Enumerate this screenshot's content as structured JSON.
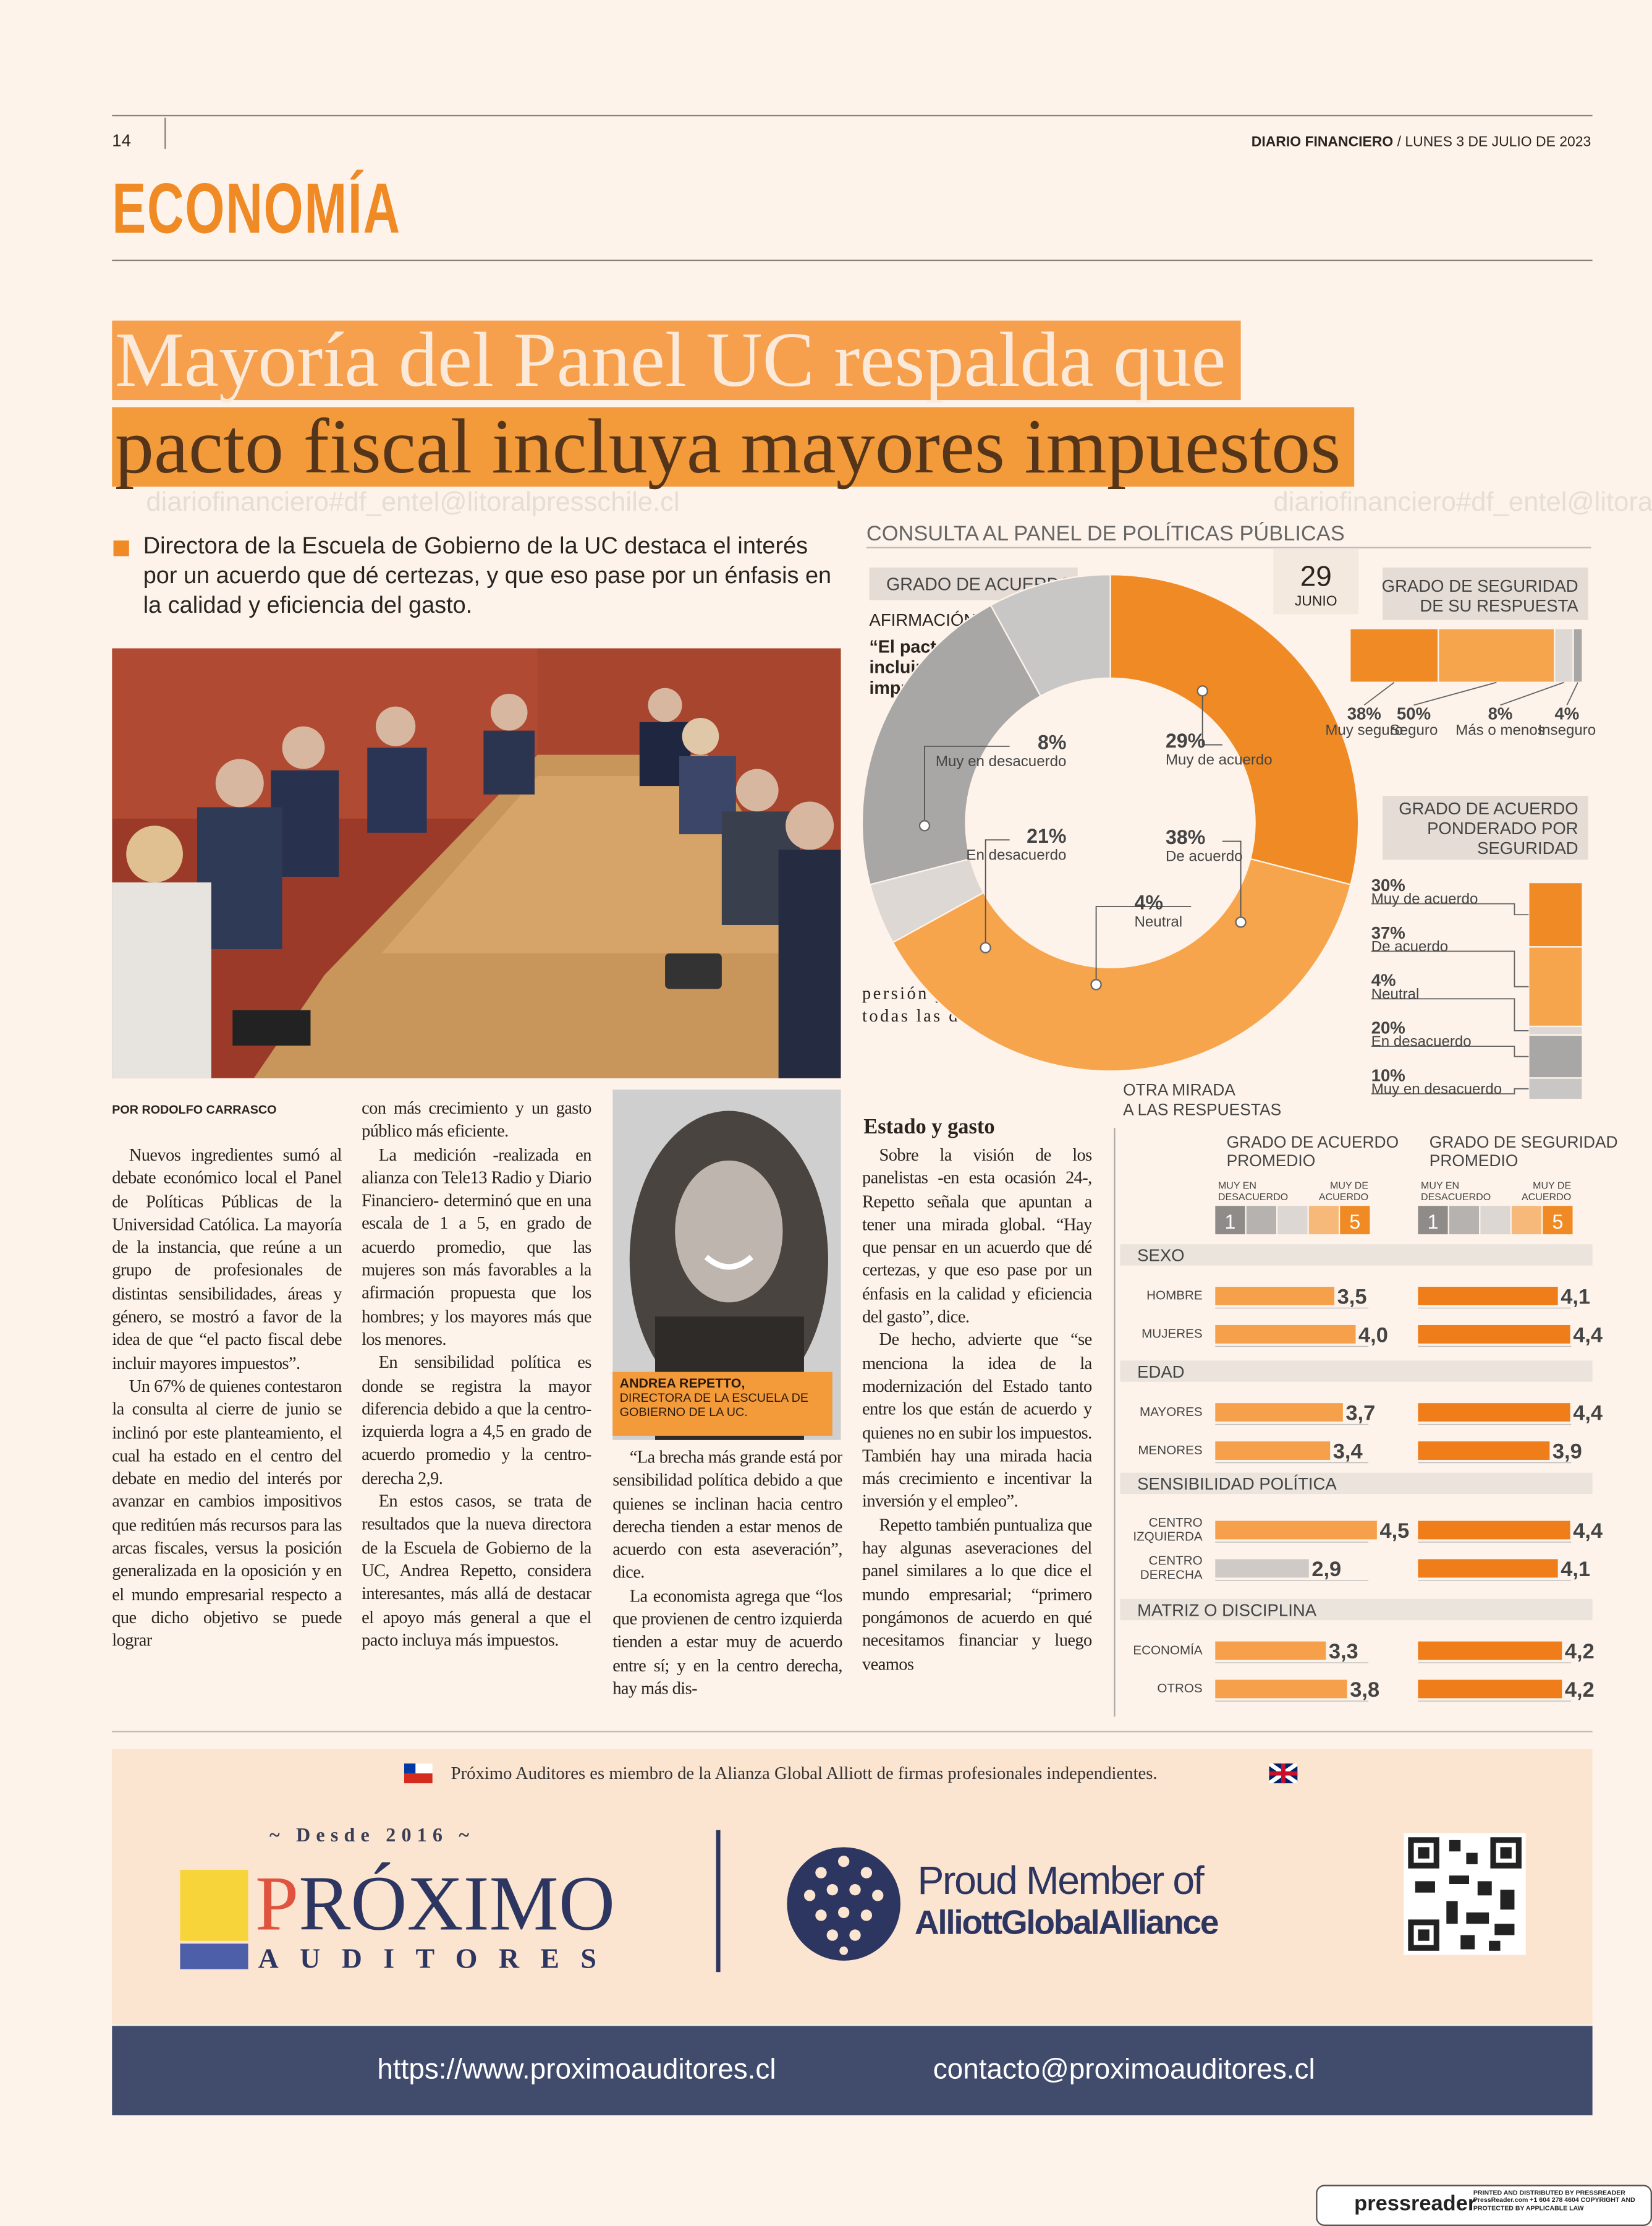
{
  "header": {
    "page": "14",
    "paper": "DIARIO FINANCIERO",
    "date": "/ LUNES 3 DE JULIO DE 2023"
  },
  "section": "ECONOMÍA",
  "headline": [
    "Mayoría del Panel UC respalda que",
    "pacto fiscal incluya mayores impuestos"
  ],
  "watermark": "diariofinanciero#df_entel@litoralpresschile.cl",
  "lead": "Directora de la Escuela de Gobierno de la UC destaca el interés por un acuerdo que dé certezas, y que eso pase por un énfasis en la calidad y eficiencia del gasto.",
  "byline": "POR RODOLFO CARRASCO",
  "body": {
    "col1": [
      "Nuevos ingredientes sumó al debate económico local el Panel de Políticas Públicas de la Universidad Católica. La mayoría de la instancia, que reúne a un grupo de profesionales de distintas sensibilidades, áreas y género, se mostró a favor de la idea de que “el pacto fiscal debe incluir mayores impuestos”.",
      "Un 67% de quienes contestaron la consulta al cierre de junio se inclinó por este planteamiento, el cual ha estado en el centro del debate en medio del interés por avanzar en cambios impositivos que reditúen más recursos para las arcas fiscales, versus la posición generalizada en la oposición y en el mundo empresarial respecto a que dicho objetivo se puede lograr"
    ],
    "col2": [
      "con más crecimiento y un gasto público más eficiente.",
      "La medición -realizada en alianza con Tele13 Radio y Diario Financiero- determinó que en una escala de 1 a 5, en grado de acuerdo promedio, que las mujeres son más favorables a la afirmación propuesta que los hombres; y los mayores más que los menores.",
      "En sensibilidad política es donde se registra la mayor diferencia debido a que la centro-izquierda logra a 4,5 en grado de acuerdo promedio y la centro-derecha 2,9.",
      "En estos casos, se trata de resultados que la nueva directora de la Escuela de Gobierno de la UC, Andrea Repetto, considera interesantes, más allá de destacar el apoyo más general a que el pacto incluya más impuestos."
    ],
    "col3": [
      "“La brecha más grande está por sensibilidad política debido a que quienes se inclinan hacia centro derecha tienden a estar menos de acuerdo con esta aseveración”, dice.",
      "La economista agrega que “los que provienen de centro izquierda tienden a estar muy de acuerdo entre sí; y en la centro derecha, hay más dis-"
    ],
    "col4a": [
      "persión y opiniones en todas las direcciones”."
    ],
    "subhead": "Estado y gasto",
    "col4b": [
      "Sobre la visión de los panelistas -en esta ocasión 24-, Repetto señala que apuntan a tener una mirada global. “Hay que pensar en un acuerdo que dé certezas, y que eso pase por un énfasis en la calidad y eficiencia del gasto”, dice.",
      "De hecho, advierte que “se menciona la idea de la modernización del Estado tanto entre los que están de acuerdo y quienes no en subir los impuestos. También hay una mirada hacia más crecimiento e incentivar la inversión y el empleo”.",
      "Repetto también puntualiza que hay algunas aseveraciones del panel similares a lo que dice el mundo empresarial; “primero pongámonos de acuerdo en qué necesitamos financiar y luego veamos"
    ]
  },
  "photo_caption": {
    "name": "ANDREA REPETTO,",
    "role": "DIRECTORA DE LA ESCUELA DE GOBIERNO DE LA UC."
  },
  "infographic": {
    "title": "CONSULTA AL PANEL DE POLÍTICAS PÚBLICAS",
    "day": "29",
    "month": "JUNIO",
    "agreement": {
      "title": "GRADO DE ACUERDO",
      "statement_label": "AFIRMACIÓN:",
      "statement": "“El pacto fiscal debe incluir mayores impuestos”",
      "categories": [
        "Muy de acuerdo",
        "De acuerdo",
        "Neutral",
        "En desacuerdo",
        "Muy en desacuerdo"
      ],
      "values": [
        29,
        38,
        4,
        21,
        8
      ],
      "value_labels": [
        "29%",
        "38%",
        "4%",
        "21%",
        "8%"
      ],
      "colors": [
        "#f08a24",
        "#f6a54c",
        "#ddd8d3",
        "#a9a7a5",
        "#c9c7c5"
      ]
    },
    "security": {
      "title": "GRADO DE SEGURIDAD DE SU RESPUESTA",
      "categories": [
        "Muy seguro",
        "Seguro",
        "Más o menos",
        "Inseguro"
      ],
      "values": [
        38,
        50,
        8,
        4
      ],
      "value_labels": [
        "38%",
        "50%",
        "8%",
        "4%"
      ],
      "colors": [
        "#f08a24",
        "#f6a54c",
        "#ddd8d3",
        "#a9a7a5"
      ]
    },
    "weighted": {
      "title": "GRADO DE ACUERDO PONDERADO POR SEGURIDAD",
      "categories": [
        "Muy de acuerdo",
        "De acuerdo",
        "Neutral",
        "En desacuerdo",
        "Muy en desacuerdo"
      ],
      "values": [
        30,
        37,
        4,
        20,
        10
      ],
      "value_labels": [
        "30%",
        "37%",
        "4%",
        "20%",
        "10%"
      ],
      "colors": [
        "#f08a24",
        "#f6a54c",
        "#ddd8d3",
        "#a9a7a5",
        "#c9c7c5"
      ]
    },
    "other": {
      "title": "OTRA MIRADA A LAS RESPUESTAS",
      "agreement_title": "GRADO DE ACUERDO PROMEDIO",
      "security_title": "GRADO DE SEGURIDAD PROMEDIO",
      "scale_low": "MUY EN DESACUERDO",
      "scale_high": "MUY DE ACUERDO",
      "scale_min": 1,
      "scale_max": 5,
      "agreement_color": "#f6a04b",
      "security_color": "#ef7d1a",
      "low_color": "#cfcac5",
      "groups": [
        {
          "name": "SEXO",
          "rows": [
            {
              "label": "HOMBRE",
              "agreement": 3.5,
              "agreement_label": "3,5",
              "security": 4.1,
              "security_label": "4,1"
            },
            {
              "label": "MUJERES",
              "agreement": 4.0,
              "agreement_label": "4,0",
              "security": 4.4,
              "security_label": "4,4"
            }
          ]
        },
        {
          "name": "EDAD",
          "rows": [
            {
              "label": "MAYORES",
              "agreement": 3.7,
              "agreement_label": "3,7",
              "security": 4.4,
              "security_label": "4,4"
            },
            {
              "label": "MENORES",
              "agreement": 3.4,
              "agreement_label": "3,4",
              "security": 3.9,
              "security_label": "3,9"
            }
          ]
        },
        {
          "name": "SENSIBILIDAD POLÍTICA",
          "rows": [
            {
              "label": "CENTRO IZQUIERDA",
              "agreement": 4.5,
              "agreement_label": "4,5",
              "security": 4.4,
              "security_label": "4,4"
            },
            {
              "label": "CENTRO DERECHA",
              "agreement": 2.9,
              "agreement_label": "2,9",
              "security": 4.1,
              "security_label": "4,1"
            }
          ]
        },
        {
          "name": "MATRIZ O DISCIPLINA",
          "rows": [
            {
              "label": "ECONOMÍA",
              "agreement": 3.3,
              "agreement_label": "3,3",
              "security": 4.2,
              "security_label": "4,2"
            },
            {
              "label": "OTROS",
              "agreement": 3.8,
              "agreement_label": "3,8",
              "security": 4.2,
              "security_label": "4,2"
            }
          ]
        }
      ]
    }
  },
  "ad": {
    "member": "Próximo Auditores es miembro de la Alianza Global Alliott de firmas profesionales independientes.",
    "since": "~ Desde 2016 ~",
    "logo": "PRÓXIMO",
    "logo_sub": "AUDITORES",
    "proud": "Proud Member of",
    "alliance": "AlliottGlobalAlliance",
    "url": "https://www.proximoauditores.cl",
    "email": "contacto@proximoauditores.cl"
  },
  "footer": {
    "brand": "pressreader",
    "note": "PRINTED AND DISTRIBUTED BY PRESSREADER PressReader.com +1 604 278 4604 COPYRIGHT AND PROTECTED BY APPLICABLE LAW"
  }
}
